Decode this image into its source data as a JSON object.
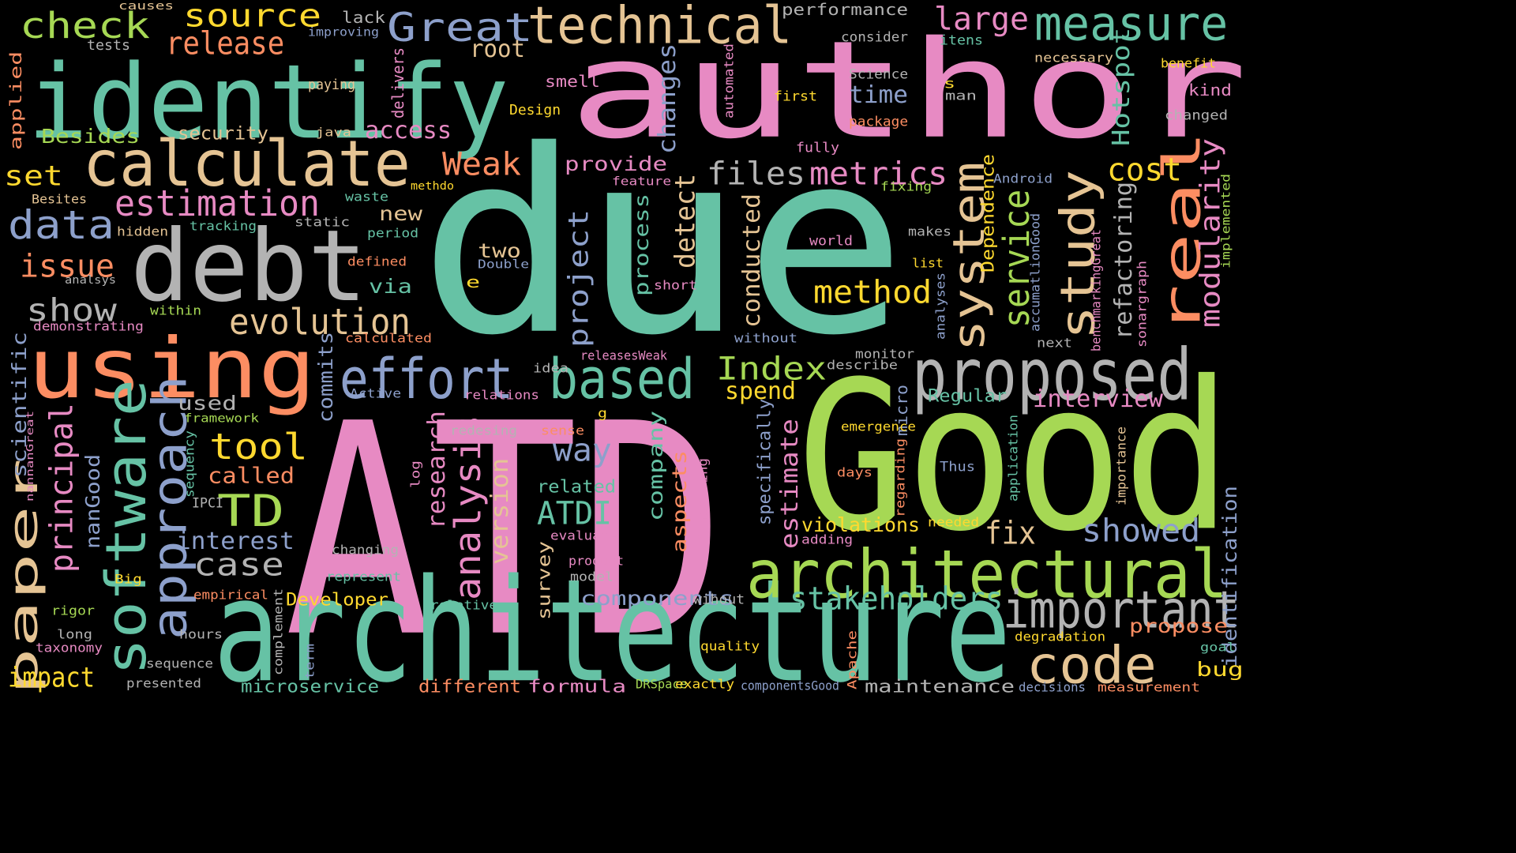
{
  "palette": {
    "teal": "#66c2a5",
    "orange": "#fc8d62",
    "blue": "#8da0cb",
    "pink": "#e78ac3",
    "green": "#a6d854",
    "yellow": "#ffd92f",
    "tan": "#e5c494",
    "gray": "#b3b3b3"
  },
  "words": [
    {
      "text": "due",
      "color": "teal"
    },
    {
      "text": "author",
      "color": "pink"
    },
    {
      "text": "ATD",
      "color": "pink"
    },
    {
      "text": "Good",
      "color": "green"
    },
    {
      "text": "architecture",
      "color": "teal"
    },
    {
      "text": "identify",
      "color": "teal"
    },
    {
      "text": "debt",
      "color": "gray"
    },
    {
      "text": "using",
      "color": "orange"
    },
    {
      "text": "architectural",
      "color": "green"
    },
    {
      "text": "proposed",
      "color": "gray"
    },
    {
      "text": "calculate",
      "color": "tan"
    },
    {
      "text": "technical",
      "color": "tan"
    },
    {
      "text": "software",
      "color": "teal"
    },
    {
      "text": "approach",
      "color": "blue"
    },
    {
      "text": "study",
      "color": "tan"
    },
    {
      "text": "important",
      "color": "gray"
    },
    {
      "text": "measure",
      "color": "teal"
    },
    {
      "text": "real",
      "color": "orange"
    },
    {
      "text": "system",
      "color": "tan"
    },
    {
      "text": "effort",
      "color": "blue"
    },
    {
      "text": "based",
      "color": "teal"
    },
    {
      "text": "estimation",
      "color": "pink"
    },
    {
      "text": "code",
      "color": "tan"
    },
    {
      "text": "paper",
      "color": "tan"
    },
    {
      "text": "data",
      "color": "blue"
    },
    {
      "text": "evolution",
      "color": "tan"
    },
    {
      "text": "source",
      "color": "yellow"
    },
    {
      "text": "Great",
      "color": "blue"
    },
    {
      "text": "check",
      "color": "green"
    },
    {
      "text": "release",
      "color": "orange"
    },
    {
      "text": "metrics",
      "color": "pink"
    },
    {
      "text": "files",
      "color": "gray"
    },
    {
      "text": "TD",
      "color": "green"
    },
    {
      "text": "tool",
      "color": "yellow"
    },
    {
      "text": "Index",
      "color": "green"
    },
    {
      "text": "service",
      "color": "green"
    },
    {
      "text": "stakeholders",
      "color": "teal"
    },
    {
      "text": "analysis",
      "color": "pink"
    },
    {
      "text": "principal",
      "color": "pink"
    },
    {
      "text": "show",
      "color": "gray"
    },
    {
      "text": "case",
      "color": "gray"
    },
    {
      "text": "issue",
      "color": "orange"
    },
    {
      "text": "modularity",
      "color": "pink"
    },
    {
      "text": "large",
      "color": "pink"
    },
    {
      "text": "cost",
      "color": "yellow"
    },
    {
      "text": "method",
      "color": "yellow"
    },
    {
      "text": "showed",
      "color": "blue"
    },
    {
      "text": "ATDI",
      "color": "teal"
    },
    {
      "text": "way",
      "color": "blue"
    },
    {
      "text": "fix",
      "color": "tan"
    },
    {
      "text": "Weak",
      "color": "orange"
    },
    {
      "text": "project",
      "color": "blue"
    },
    {
      "text": "detect",
      "color": "tan"
    },
    {
      "text": "conducted",
      "color": "tan"
    },
    {
      "text": "interview",
      "color": "pink"
    },
    {
      "text": "set",
      "color": "yellow"
    },
    {
      "text": "impact",
      "color": "yellow"
    },
    {
      "text": "interest",
      "color": "blue"
    },
    {
      "text": "research",
      "color": "pink"
    },
    {
      "text": "version",
      "color": "tan"
    },
    {
      "text": "access",
      "color": "pink"
    },
    {
      "text": "changes",
      "color": "blue"
    },
    {
      "text": "refactoring",
      "color": "gray"
    },
    {
      "text": "Hotspot",
      "color": "teal"
    },
    {
      "text": "time",
      "color": "blue"
    },
    {
      "text": "root",
      "color": "tan"
    },
    {
      "text": "identification",
      "color": "blue"
    },
    {
      "text": "called",
      "color": "orange"
    },
    {
      "text": "spend",
      "color": "yellow"
    },
    {
      "text": "estimate",
      "color": "pink"
    },
    {
      "text": "company",
      "color": "teal"
    },
    {
      "text": "aspects",
      "color": "orange"
    },
    {
      "text": "components",
      "color": "blue"
    },
    {
      "text": "microservice",
      "color": "teal"
    },
    {
      "text": "formula",
      "color": "pink"
    },
    {
      "text": "different",
      "color": "orange"
    },
    {
      "text": "maintenance",
      "color": "gray"
    },
    {
      "text": "violations",
      "color": "yellow"
    },
    {
      "text": "bug",
      "color": "yellow"
    },
    {
      "text": "propose",
      "color": "orange"
    },
    {
      "text": "Besides",
      "color": "green"
    },
    {
      "text": "security",
      "color": "tan"
    },
    {
      "text": "new",
      "color": "tan"
    },
    {
      "text": "two",
      "color": "tan"
    },
    {
      "text": "via",
      "color": "teal"
    },
    {
      "text": "provide",
      "color": "pink"
    },
    {
      "text": "process",
      "color": "teal"
    },
    {
      "text": "commits",
      "color": "blue"
    },
    {
      "text": "scientific",
      "color": "blue"
    },
    {
      "text": "used",
      "color": "gray"
    },
    {
      "text": "nanGood",
      "color": "blue"
    },
    {
      "text": "related",
      "color": "teal"
    },
    {
      "text": "Developer",
      "color": "yellow"
    },
    {
      "text": "survey",
      "color": "tan"
    },
    {
      "text": "Regular",
      "color": "teal"
    },
    {
      "text": "specifically",
      "color": "blue"
    },
    {
      "text": "Dependence",
      "color": "yellow"
    },
    {
      "text": "micro",
      "color": "blue"
    },
    {
      "text": "smell",
      "color": "pink"
    },
    {
      "text": "applied",
      "color": "orange"
    },
    {
      "text": "performance",
      "color": "gray"
    },
    {
      "text": "lack",
      "color": "gray"
    },
    {
      "text": "causes",
      "color": "tan"
    },
    {
      "text": "tests",
      "color": "gray"
    },
    {
      "text": "improving",
      "color": "blue"
    },
    {
      "text": "delivers",
      "color": "pink"
    },
    {
      "text": "paying",
      "color": "tan"
    },
    {
      "text": "java",
      "color": "tan"
    },
    {
      "text": "Design",
      "color": "yellow"
    },
    {
      "text": "automated",
      "color": "pink"
    },
    {
      "text": "consider",
      "color": "gray"
    },
    {
      "text": "Science",
      "color": "gray"
    },
    {
      "text": "package",
      "color": "orange"
    },
    {
      "text": "first",
      "color": "yellow"
    },
    {
      "text": "fully",
      "color": "pink"
    },
    {
      "text": "itens",
      "color": "teal"
    },
    {
      "text": "necessary",
      "color": "tan"
    },
    {
      "text": "benefit",
      "color": "yellow"
    },
    {
      "text": "kind",
      "color": "pink"
    },
    {
      "text": "changed",
      "color": "gray"
    },
    {
      "text": "s",
      "color": "yellow"
    },
    {
      "text": "man",
      "color": "gray"
    },
    {
      "text": "Besites",
      "color": "tan"
    },
    {
      "text": "hidden",
      "color": "tan"
    },
    {
      "text": "tracking",
      "color": "teal"
    },
    {
      "text": "static",
      "color": "gray"
    },
    {
      "text": "methdo",
      "color": "yellow"
    },
    {
      "text": "period",
      "color": "teal"
    },
    {
      "text": "waste",
      "color": "teal"
    },
    {
      "text": "feature",
      "color": "pink"
    },
    {
      "text": "world",
      "color": "pink"
    },
    {
      "text": "makes",
      "color": "gray"
    },
    {
      "text": "Android",
      "color": "blue"
    },
    {
      "text": "fixing",
      "color": "green"
    },
    {
      "text": "defined",
      "color": "orange"
    },
    {
      "text": "Double",
      "color": "blue"
    },
    {
      "text": "e",
      "color": "yellow"
    },
    {
      "text": "short",
      "color": "pink"
    },
    {
      "text": "list",
      "color": "yellow"
    },
    {
      "text": "analyses",
      "color": "blue"
    },
    {
      "text": "accumatlionGood",
      "color": "blue"
    },
    {
      "text": "benchmarkingGreat",
      "color": "pink"
    },
    {
      "text": "sonargraph",
      "color": "pink"
    },
    {
      "text": "implemented",
      "color": "green"
    },
    {
      "text": "analsys",
      "color": "gray"
    },
    {
      "text": "within",
      "color": "green"
    },
    {
      "text": "demonstrating",
      "color": "pink"
    },
    {
      "text": "calculated",
      "color": "orange"
    },
    {
      "text": "without",
      "color": "blue"
    },
    {
      "text": "monitor",
      "color": "gray"
    },
    {
      "text": "next",
      "color": "gray"
    },
    {
      "text": "describe",
      "color": "gray"
    },
    {
      "text": "releasesWeak",
      "color": "pink"
    },
    {
      "text": "idea",
      "color": "gray"
    },
    {
      "text": "Active",
      "color": "blue"
    },
    {
      "text": "relations",
      "color": "pink"
    },
    {
      "text": "framework",
      "color": "green"
    },
    {
      "text": "g",
      "color": "yellow"
    },
    {
      "text": "redesing",
      "color": "gray"
    },
    {
      "text": "sense",
      "color": "orange"
    },
    {
      "text": "emergence",
      "color": "yellow"
    },
    {
      "text": "days",
      "color": "orange"
    },
    {
      "text": "Thus",
      "color": "blue"
    },
    {
      "text": "application",
      "color": "teal"
    },
    {
      "text": "importance",
      "color": "tan"
    },
    {
      "text": "nannanGreat",
      "color": "pink"
    },
    {
      "text": "sequency",
      "color": "teal"
    },
    {
      "text": "IPCI",
      "color": "gray"
    },
    {
      "text": "log",
      "color": "pink"
    },
    {
      "text": "Monitoring",
      "color": "pink"
    },
    {
      "text": "regarding",
      "color": "orange"
    },
    {
      "text": "needed",
      "color": "yellow"
    },
    {
      "text": "adding",
      "color": "pink"
    },
    {
      "text": "changing",
      "color": "gray"
    },
    {
      "text": "evaluate",
      "color": "pink"
    },
    {
      "text": "product",
      "color": "pink"
    },
    {
      "text": "represent",
      "color": "teal"
    },
    {
      "text": "model",
      "color": "gray"
    },
    {
      "text": "Big",
      "color": "yellow"
    },
    {
      "text": "empirical",
      "color": "orange"
    },
    {
      "text": "complement",
      "color": "gray"
    },
    {
      "text": "relative",
      "color": "teal"
    },
    {
      "text": "wihout",
      "color": "gray"
    },
    {
      "text": "rigor",
      "color": "green"
    },
    {
      "text": "long",
      "color": "gray"
    },
    {
      "text": "taxonomy",
      "color": "pink"
    },
    {
      "text": "hours",
      "color": "gray"
    },
    {
      "text": "sequence",
      "color": "gray"
    },
    {
      "text": "presented",
      "color": "gray"
    },
    {
      "text": "term",
      "color": "blue"
    },
    {
      "text": "Apache",
      "color": "orange"
    },
    {
      "text": "quality",
      "color": "yellow"
    },
    {
      "text": "degradation",
      "color": "yellow"
    },
    {
      "text": "goal",
      "color": "teal"
    },
    {
      "text": "DRSpace",
      "color": "green"
    },
    {
      "text": "exactly",
      "color": "yellow"
    },
    {
      "text": "componentsGood",
      "color": "blue"
    },
    {
      "text": "decisions",
      "color": "blue"
    },
    {
      "text": "measurement",
      "color": "orange"
    }
  ]
}
